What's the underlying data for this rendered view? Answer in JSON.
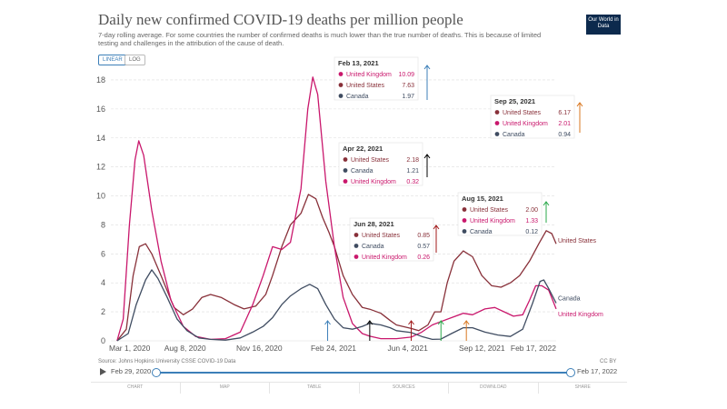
{
  "header": {
    "title": "Daily new confirmed COVID-19 deaths per million people",
    "subtitle": "7-day rolling average. For some countries the number of confirmed deaths is much lower than the true number of deaths. This is because of limited testing and challenges in the attribution of the cause of death.",
    "logo": "Our World in Data",
    "scale_linear": "LINEAR",
    "scale_log": "LOG"
  },
  "footer": {
    "source": "Source: Johns Hopkins University CSSE COVID-19 Data",
    "license": "CC BY"
  },
  "timeline": {
    "start": "Feb 29, 2020",
    "end": "Feb 17, 2022",
    "play_icon": "play-icon"
  },
  "tabs": [
    "CHART",
    "MAP",
    "TABLE",
    "SOURCES",
    "DOWNLOAD",
    "SHARE"
  ],
  "colors": {
    "united_kingdom": "#c9176c",
    "united_states": "#883039",
    "canada": "#3f4c61",
    "axis_text": "#555555",
    "grid": "#dddddd"
  },
  "chart_data": {
    "type": "line",
    "x_tick_labels": [
      "Mar 1, 2020",
      "Aug 8, 2020",
      "Nov 16, 2020",
      "Feb 24, 2021",
      "Jun 4, 2021",
      "Sep 12, 2021",
      "Feb 17, 2022"
    ],
    "y_ticks": [
      0,
      2,
      4,
      6,
      8,
      10,
      12,
      14,
      16,
      18
    ],
    "ylim": [
      0,
      18.5
    ],
    "xlim": [
      "2020-02-29",
      "2022-02-17"
    ],
    "grid": true,
    "series": [
      {
        "name": "United States",
        "color": "#883039",
        "end_label": "United States",
        "points": [
          [
            "2020-03-10",
            0
          ],
          [
            "2020-03-25",
            0.8
          ],
          [
            "2020-04-05",
            4.5
          ],
          [
            "2020-04-15",
            6.5
          ],
          [
            "2020-04-25",
            6.7
          ],
          [
            "2020-05-05",
            6.0
          ],
          [
            "2020-05-20",
            4.5
          ],
          [
            "2020-06-10",
            2.3
          ],
          [
            "2020-06-25",
            1.8
          ],
          [
            "2020-07-10",
            2.2
          ],
          [
            "2020-07-25",
            3.0
          ],
          [
            "2020-08-08",
            3.2
          ],
          [
            "2020-08-25",
            3.0
          ],
          [
            "2020-09-15",
            2.5
          ],
          [
            "2020-10-01",
            2.2
          ],
          [
            "2020-10-20",
            2.4
          ],
          [
            "2020-11-05",
            3.2
          ],
          [
            "2020-11-16",
            4.5
          ],
          [
            "2020-12-01",
            6.5
          ],
          [
            "2020-12-15",
            8.0
          ],
          [
            "2021-01-01",
            8.8
          ],
          [
            "2021-01-13",
            10.1
          ],
          [
            "2021-01-25",
            9.8
          ],
          [
            "2021-02-05",
            8.5
          ],
          [
            "2021-02-15",
            7.5
          ],
          [
            "2021-02-24",
            6.5
          ],
          [
            "2021-03-10",
            4.5
          ],
          [
            "2021-03-25",
            3.2
          ],
          [
            "2021-04-10",
            2.3
          ],
          [
            "2021-04-22",
            2.18
          ],
          [
            "2021-05-10",
            1.9
          ],
          [
            "2021-05-25",
            1.4
          ],
          [
            "2021-06-04",
            1.1
          ],
          [
            "2021-06-28",
            0.85
          ],
          [
            "2021-07-10",
            0.7
          ],
          [
            "2021-07-25",
            1.1
          ],
          [
            "2021-08-05",
            2.0
          ],
          [
            "2021-08-15",
            2.0
          ],
          [
            "2021-08-25",
            4.0
          ],
          [
            "2021-09-05",
            5.5
          ],
          [
            "2021-09-20",
            6.2
          ],
          [
            "2021-10-05",
            5.8
          ],
          [
            "2021-10-20",
            4.5
          ],
          [
            "2021-11-05",
            3.8
          ],
          [
            "2021-11-20",
            3.7
          ],
          [
            "2021-12-05",
            4.0
          ],
          [
            "2021-12-20",
            4.5
          ],
          [
            "2022-01-05",
            5.5
          ],
          [
            "2022-01-20",
            6.7
          ],
          [
            "2022-02-01",
            7.6
          ],
          [
            "2022-02-10",
            7.4
          ],
          [
            "2022-02-17",
            6.7
          ]
        ]
      },
      {
        "name": "United Kingdom",
        "color": "#c9176c",
        "end_label": "United Kingdom",
        "points": [
          [
            "2020-03-10",
            0
          ],
          [
            "2020-03-20",
            1.5
          ],
          [
            "2020-03-30",
            8.0
          ],
          [
            "2020-04-08",
            12.5
          ],
          [
            "2020-04-14",
            13.8
          ],
          [
            "2020-04-22",
            12.8
          ],
          [
            "2020-05-05",
            9.0
          ],
          [
            "2020-05-20",
            5.5
          ],
          [
            "2020-06-05",
            2.8
          ],
          [
            "2020-06-25",
            1.0
          ],
          [
            "2020-07-15",
            0.3
          ],
          [
            "2020-08-08",
            0.1
          ],
          [
            "2020-09-01",
            0.15
          ],
          [
            "2020-09-25",
            0.6
          ],
          [
            "2020-10-15",
            2.5
          ],
          [
            "2020-11-01",
            4.5
          ],
          [
            "2020-11-16",
            6.5
          ],
          [
            "2020-12-01",
            6.3
          ],
          [
            "2020-12-15",
            6.8
          ],
          [
            "2021-01-01",
            10.5
          ],
          [
            "2021-01-12",
            16.0
          ],
          [
            "2021-01-20",
            18.2
          ],
          [
            "2021-01-28",
            17.0
          ],
          [
            "2021-02-10",
            11.0
          ],
          [
            "2021-02-24",
            6.5
          ],
          [
            "2021-03-10",
            3.0
          ],
          [
            "2021-03-25",
            1.2
          ],
          [
            "2021-04-10",
            0.5
          ],
          [
            "2021-04-22",
            0.32
          ],
          [
            "2021-05-10",
            0.15
          ],
          [
            "2021-06-04",
            0.15
          ],
          [
            "2021-06-28",
            0.26
          ],
          [
            "2021-07-15",
            0.6
          ],
          [
            "2021-08-01",
            1.1
          ],
          [
            "2021-08-15",
            1.33
          ],
          [
            "2021-09-01",
            1.6
          ],
          [
            "2021-09-20",
            1.9
          ],
          [
            "2021-10-05",
            1.8
          ],
          [
            "2021-10-25",
            2.2
          ],
          [
            "2021-11-10",
            2.3
          ],
          [
            "2021-11-25",
            2.0
          ],
          [
            "2021-12-10",
            1.7
          ],
          [
            "2021-12-25",
            1.8
          ],
          [
            "2022-01-05",
            2.8
          ],
          [
            "2022-01-15",
            3.8
          ],
          [
            "2022-01-25",
            3.8
          ],
          [
            "2022-02-05",
            3.5
          ],
          [
            "2022-02-17",
            2.2
          ]
        ]
      },
      {
        "name": "Canada",
        "color": "#3f4c61",
        "end_label": "Canada",
        "points": [
          [
            "2020-03-10",
            0
          ],
          [
            "2020-03-28",
            0.5
          ],
          [
            "2020-04-10",
            2.5
          ],
          [
            "2020-04-25",
            4.2
          ],
          [
            "2020-05-05",
            4.9
          ],
          [
            "2020-05-15",
            4.3
          ],
          [
            "2020-05-30",
            3.0
          ],
          [
            "2020-06-15",
            1.5
          ],
          [
            "2020-07-01",
            0.7
          ],
          [
            "2020-07-20",
            0.2
          ],
          [
            "2020-08-08",
            0.1
          ],
          [
            "2020-09-01",
            0.05
          ],
          [
            "2020-09-25",
            0.2
          ],
          [
            "2020-10-15",
            0.6
          ],
          [
            "2020-11-01",
            1.0
          ],
          [
            "2020-11-16",
            1.6
          ],
          [
            "2020-12-01",
            2.5
          ],
          [
            "2020-12-15",
            3.1
          ],
          [
            "2021-01-01",
            3.6
          ],
          [
            "2021-01-15",
            3.9
          ],
          [
            "2021-01-28",
            3.6
          ],
          [
            "2021-02-10",
            2.5
          ],
          [
            "2021-02-24",
            1.5
          ],
          [
            "2021-03-10",
            0.9
          ],
          [
            "2021-03-25",
            0.8
          ],
          [
            "2021-04-10",
            1.0
          ],
          [
            "2021-04-22",
            1.21
          ],
          [
            "2021-05-10",
            1.1
          ],
          [
            "2021-05-25",
            0.9
          ],
          [
            "2021-06-04",
            0.7
          ],
          [
            "2021-06-28",
            0.57
          ],
          [
            "2021-07-15",
            0.3
          ],
          [
            "2021-08-01",
            0.1
          ],
          [
            "2021-08-15",
            0.12
          ],
          [
            "2021-09-01",
            0.5
          ],
          [
            "2021-09-20",
            0.9
          ],
          [
            "2021-10-05",
            0.9
          ],
          [
            "2021-10-25",
            0.6
          ],
          [
            "2021-11-15",
            0.4
          ],
          [
            "2021-12-05",
            0.3
          ],
          [
            "2021-12-25",
            0.8
          ],
          [
            "2022-01-10",
            2.6
          ],
          [
            "2022-01-22",
            4.1
          ],
          [
            "2022-01-28",
            4.2
          ],
          [
            "2022-02-05",
            3.6
          ],
          [
            "2022-02-17",
            2.6
          ]
        ]
      }
    ],
    "tooltips": [
      {
        "date": "Feb 13, 2021",
        "x_date": "2021-02-13",
        "arrow_color": "#3c7fb8",
        "rows": [
          {
            "country": "United Kingdom",
            "value": "10.09",
            "color": "#c9176c"
          },
          {
            "country": "United States",
            "value": "7.63",
            "color": "#883039"
          },
          {
            "country": "Canada",
            "value": "1.97",
            "color": "#3f4c61"
          }
        ]
      },
      {
        "date": "Apr 22, 2021",
        "x_date": "2021-04-22",
        "arrow_color": "#000000",
        "rows": [
          {
            "country": "United States",
            "value": "2.18",
            "color": "#883039"
          },
          {
            "country": "Canada",
            "value": "1.21",
            "color": "#3f4c61"
          },
          {
            "country": "United Kingdom",
            "value": "0.32",
            "color": "#c9176c"
          }
        ]
      },
      {
        "date": "Jun 28, 2021",
        "x_date": "2021-06-28",
        "arrow_color": "#a11a1a",
        "rows": [
          {
            "country": "United States",
            "value": "0.85",
            "color": "#883039"
          },
          {
            "country": "Canada",
            "value": "0.57",
            "color": "#3f4c61"
          },
          {
            "country": "United Kingdom",
            "value": "0.26",
            "color": "#c9176c"
          }
        ]
      },
      {
        "date": "Aug 15, 2021",
        "x_date": "2021-08-15",
        "arrow_color": "#2aa84a",
        "rows": [
          {
            "country": "United States",
            "value": "2.00",
            "color": "#883039"
          },
          {
            "country": "United Kingdom",
            "value": "1.33",
            "color": "#c9176c"
          },
          {
            "country": "Canada",
            "value": "0.12",
            "color": "#3f4c61"
          }
        ]
      },
      {
        "date": "Sep 25, 2021",
        "x_date": "2021-09-25",
        "arrow_color": "#d9771f",
        "rows": [
          {
            "country": "United States",
            "value": "6.17",
            "color": "#883039"
          },
          {
            "country": "United Kingdom",
            "value": "2.01",
            "color": "#c9176c"
          },
          {
            "country": "Canada",
            "value": "0.94",
            "color": "#3f4c61"
          }
        ]
      }
    ]
  }
}
